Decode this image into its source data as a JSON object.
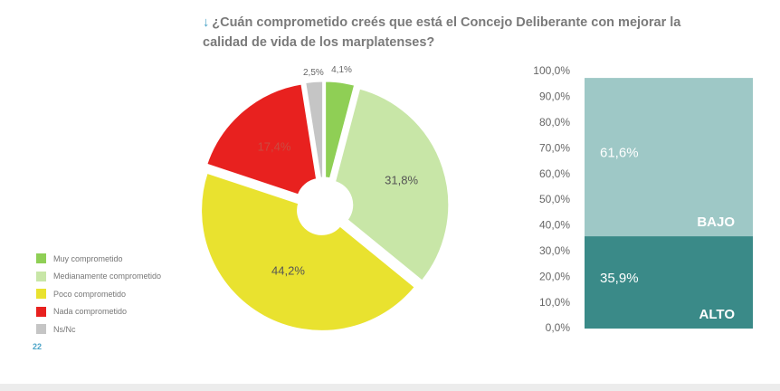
{
  "title": {
    "arrow": "↓",
    "text": "¿Cuán comprometido creés que está el Concejo Deliberante con mejorar la calidad de vida de los marplatenses?"
  },
  "page_number": "22",
  "chart_data": [
    {
      "type": "pie",
      "donut": true,
      "slices": [
        {
          "label": "Muy comprometido",
          "value": 4.1,
          "display": "4,1%",
          "color": "#8fcf55"
        },
        {
          "label": "Medianamente comprometido",
          "value": 31.8,
          "display": "31,8%",
          "color": "#c8e6a7"
        },
        {
          "label": "Poco comprometido",
          "value": 44.2,
          "display": "44,2%",
          "color": "#e9e22f"
        },
        {
          "label": "Nada comprometido",
          "value": 17.4,
          "display": "17,4%",
          "color": "#e8211f"
        },
        {
          "label": "Ns/Nc",
          "value": 2.5,
          "display": "2,5%",
          "color": "#c5c5c5"
        }
      ],
      "legend_position": "left"
    },
    {
      "type": "bar",
      "stacked": true,
      "y_ticks": [
        "100,0%",
        "90,0%",
        "80,0%",
        "70,0%",
        "60,0%",
        "50,0%",
        "40,0%",
        "30,0%",
        "20,0%",
        "10,0%",
        "0,0%"
      ],
      "ylim": [
        0,
        100
      ],
      "segments": [
        {
          "name": "ALTO",
          "value": 35.9,
          "display": "35,9%",
          "color": "#3a8a88"
        },
        {
          "name": "BAJO",
          "value": 61.6,
          "display": "61,6%",
          "color": "#9ec8c6"
        }
      ]
    }
  ]
}
